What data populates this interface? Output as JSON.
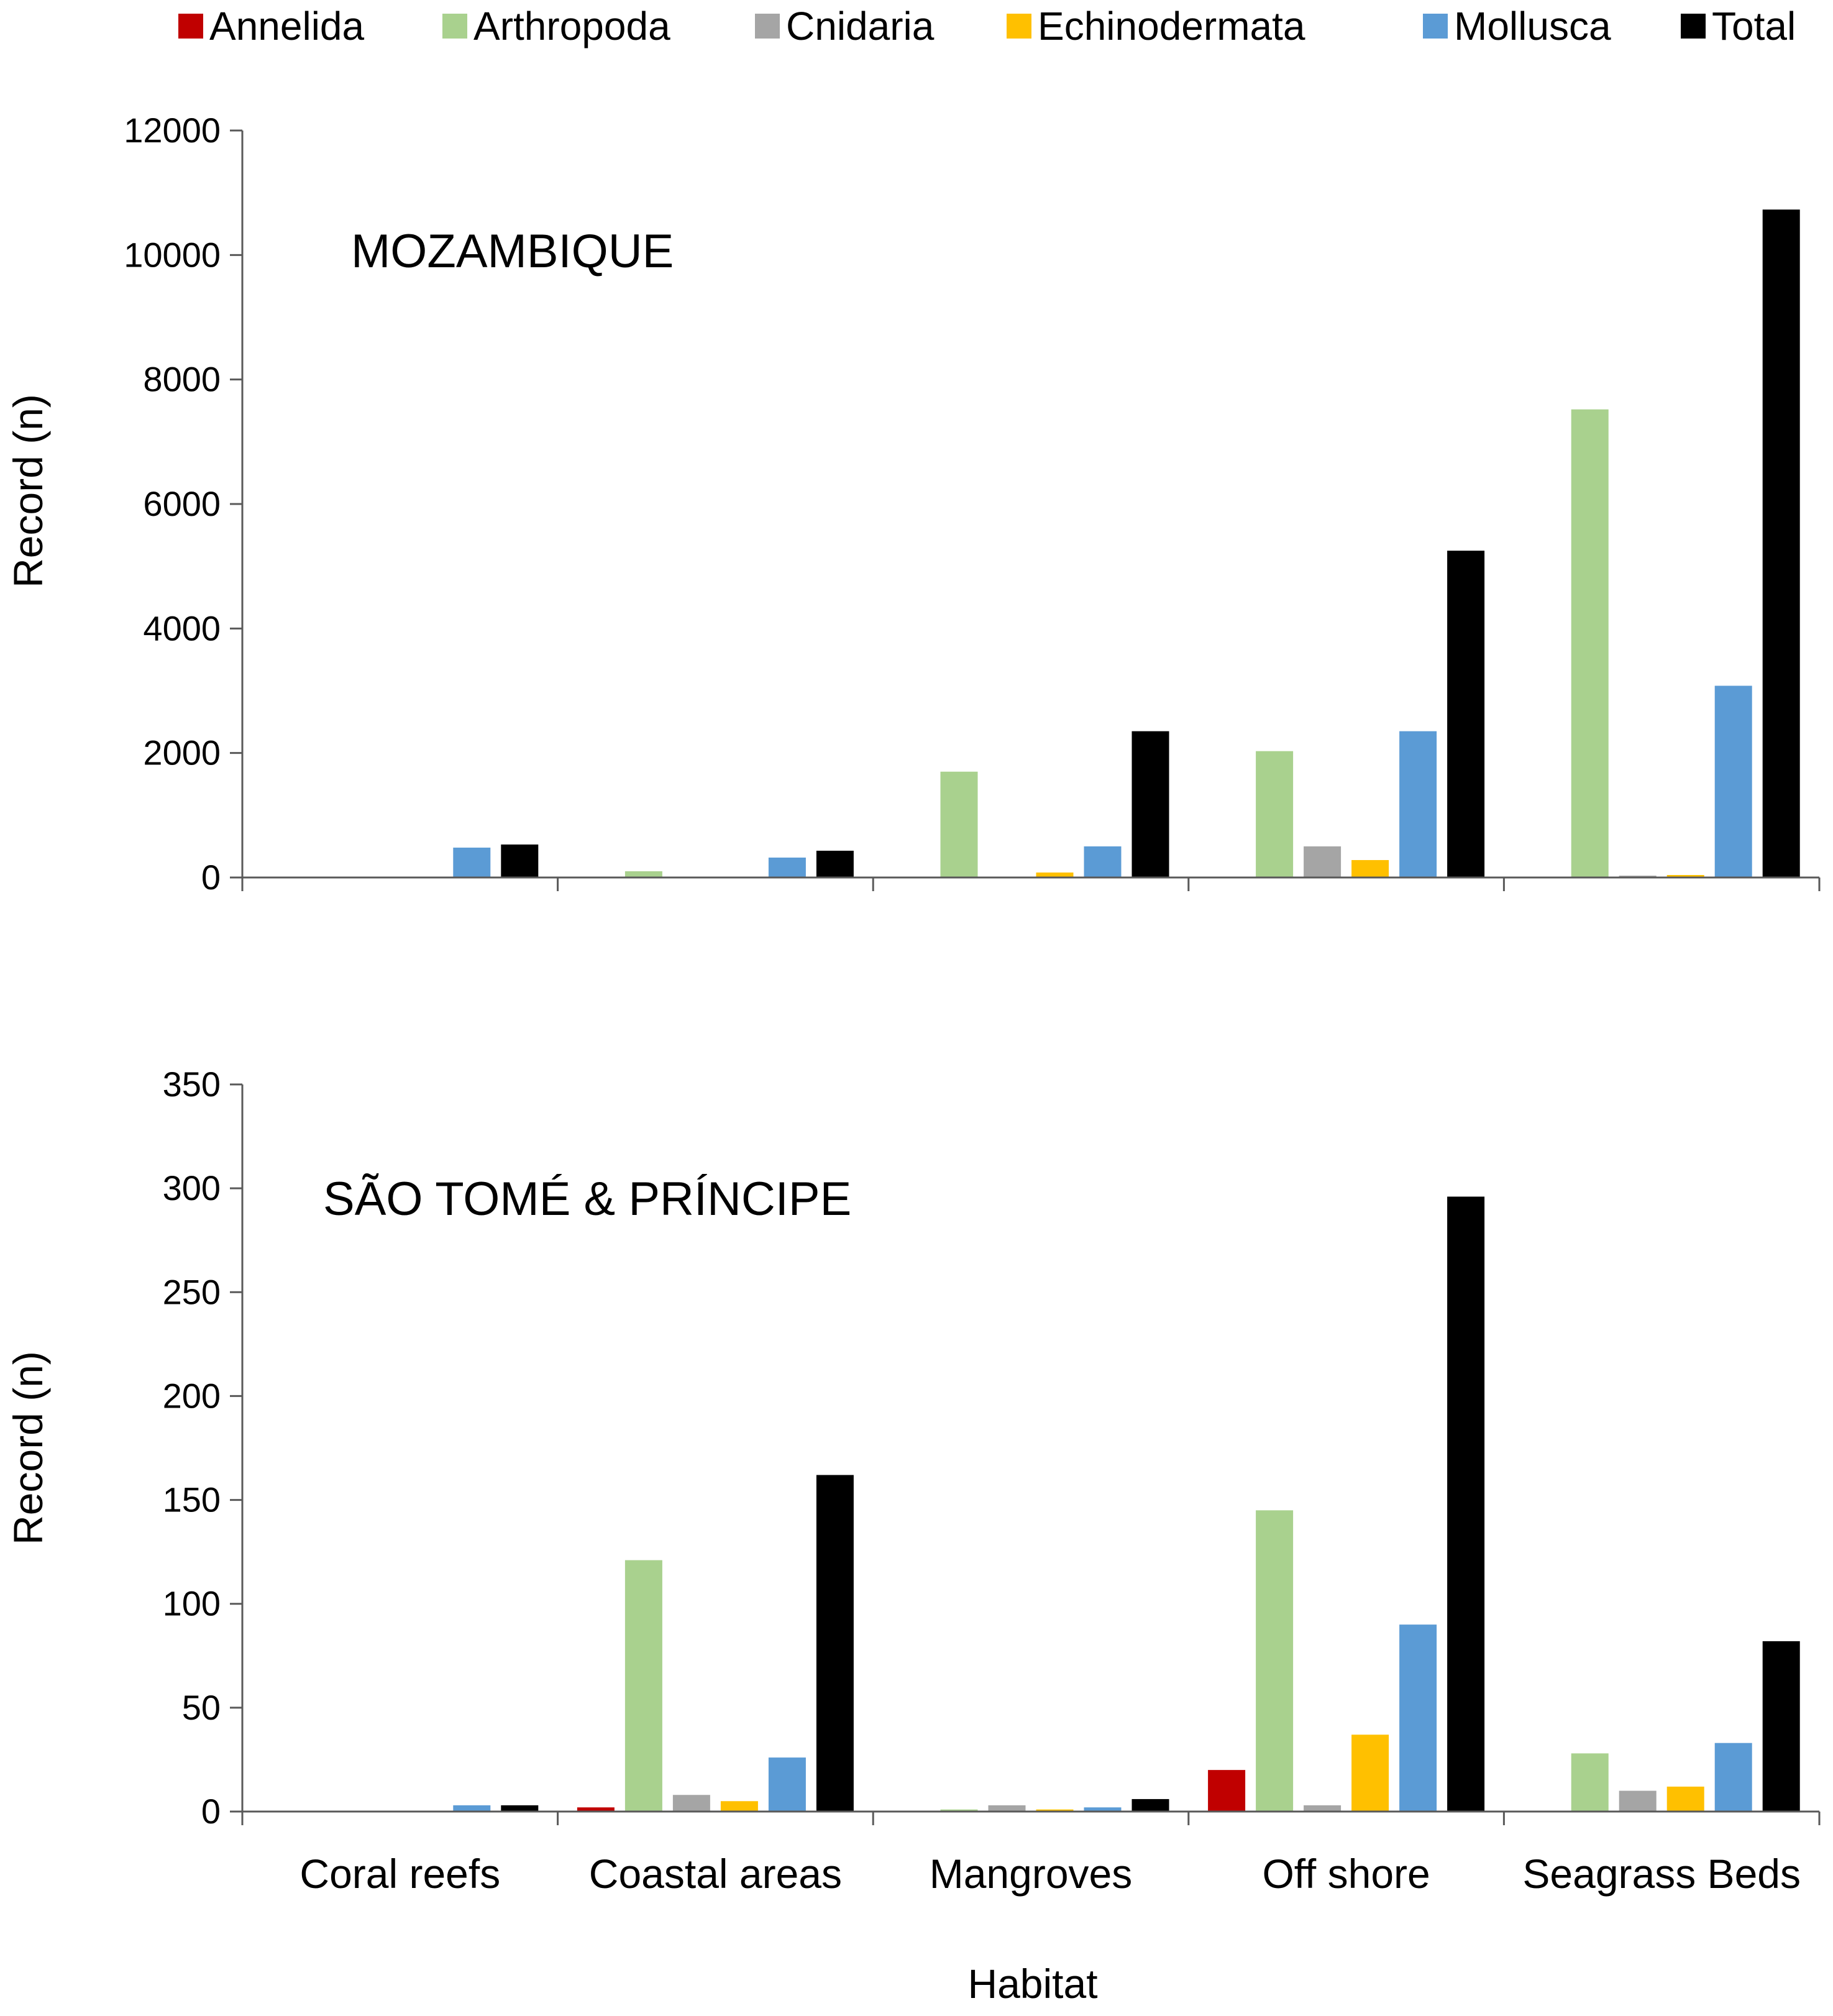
{
  "chart_data": {
    "type": "bar",
    "legend": {
      "placement": "top",
      "entries": [
        {
          "name": "Annelida",
          "color": "#c00000"
        },
        {
          "name": "Arthropoda",
          "color": "#a9d18e"
        },
        {
          "name": "Cnidaria",
          "color": "#a5a5a5"
        },
        {
          "name": "Echinodermata",
          "color": "#ffc000"
        },
        {
          "name": "Mollusca",
          "color": "#5b9bd5"
        },
        {
          "name": "Total",
          "color": "#000000"
        }
      ]
    },
    "xlabel": "Habitat",
    "categories": [
      "Coral reefs",
      "Coastal areas",
      "Mangroves",
      "Off shore",
      "Seagrass Beds"
    ],
    "panels": [
      {
        "title": "MOZAMBIQUE",
        "ylabel": "Record (n)",
        "ylim": [
          0,
          12000
        ],
        "yticks": [
          0,
          2000,
          4000,
          6000,
          8000,
          10000,
          12000
        ],
        "series": [
          {
            "name": "Annelida",
            "values": [
              0,
              10,
              15,
              15,
              10
            ]
          },
          {
            "name": "Arthropoda",
            "values": [
              0,
              100,
              1700,
              2030,
              7520
            ]
          },
          {
            "name": "Cnidaria",
            "values": [
              0,
              5,
              0,
              500,
              30
            ]
          },
          {
            "name": "Echinodermata",
            "values": [
              0,
              0,
              80,
              280,
              40
            ]
          },
          {
            "name": "Mollusca",
            "values": [
              480,
              320,
              500,
              2350,
              3080
            ]
          },
          {
            "name": "Total",
            "values": [
              530,
              430,
              2350,
              5250,
              10730
            ]
          }
        ]
      },
      {
        "title": "SÃO TOMÉ & PRÍNCIPE",
        "ylabel": "Record (n)",
        "ylim": [
          0,
          350
        ],
        "yticks": [
          0,
          50,
          100,
          150,
          200,
          250,
          300,
          350
        ],
        "series": [
          {
            "name": "Annelida",
            "values": [
              0,
              2,
              0,
              20,
              0
            ]
          },
          {
            "name": "Arthropoda",
            "values": [
              0,
              121,
              1,
              145,
              28
            ]
          },
          {
            "name": "Cnidaria",
            "values": [
              0,
              8,
              3,
              3,
              10
            ]
          },
          {
            "name": "Echinodermata",
            "values": [
              0,
              5,
              1,
              37,
              12
            ]
          },
          {
            "name": "Mollusca",
            "values": [
              3,
              26,
              2,
              90,
              33
            ]
          },
          {
            "name": "Total",
            "values": [
              3,
              162,
              6,
              296,
              82
            ]
          }
        ]
      }
    ]
  }
}
